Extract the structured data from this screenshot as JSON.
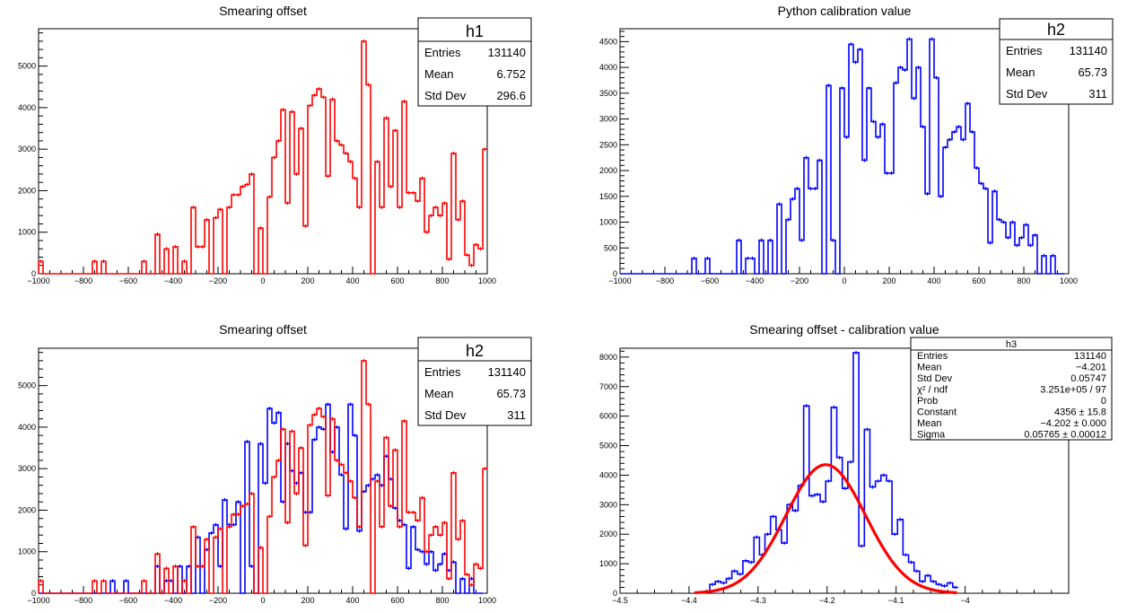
{
  "colors": {
    "red": "#ff0000",
    "blue": "#0000ff",
    "frame": "#000000",
    "background": "#ffffff"
  },
  "chart_data": [
    {
      "id": "pad1",
      "type": "histogram",
      "title": "Smearing offset",
      "xlim": [
        -1000,
        1000
      ],
      "ylim": [
        0,
        5900
      ],
      "xticks": [
        -1000,
        -800,
        -600,
        -400,
        -200,
        0,
        200,
        400,
        600,
        800,
        1000
      ],
      "yticks": [
        0,
        1000,
        2000,
        3000,
        4000,
        5000
      ],
      "ytick_labels": [
        "0",
        "1000",
        "2000",
        "3000",
        "4000",
        "5000"
      ],
      "series": [
        {
          "color": "#ff0000",
          "bins": 100,
          "xmin": -1000,
          "xmax": 1000,
          "values": [
            300,
            0,
            0,
            0,
            0,
            0,
            0,
            0,
            0,
            0,
            0,
            0,
            300,
            0,
            300,
            0,
            0,
            0,
            0,
            0,
            0,
            0,
            0,
            300,
            0,
            0,
            950,
            0,
            600,
            0,
            650,
            0,
            300,
            0,
            1600,
            650,
            650,
            1300,
            0,
            1350,
            1550,
            0,
            1600,
            1900,
            1900,
            2100,
            2150,
            2400,
            0,
            1100,
            0,
            1850,
            2800,
            3200,
            3950,
            1700,
            3900,
            2400,
            3500,
            1150,
            4050,
            4300,
            4450,
            4250,
            2350,
            4200,
            3200,
            3100,
            2900,
            2700,
            2300,
            1600,
            5600,
            4550,
            0,
            2700,
            1600,
            3750,
            2100,
            3450,
            1600,
            4150,
            1950,
            1950,
            1750,
            2300,
            1000,
            1400,
            1600,
            1400,
            1700,
            350,
            2900,
            1300,
            1750,
            450,
            200,
            700,
            600,
            3000
          ]
        }
      ],
      "stats": {
        "name": "h1",
        "rows": [
          {
            "label": "Entries",
            "value": "131140"
          },
          {
            "label": "Mean",
            "value": "6.752"
          },
          {
            "label": "Std Dev",
            "value": "296.6"
          }
        ]
      }
    },
    {
      "id": "pad2",
      "type": "histogram",
      "title": "Python calibration value",
      "xlim": [
        -1000,
        1000
      ],
      "ylim": [
        0,
        4750
      ],
      "xticks": [
        -1000,
        -800,
        -600,
        -400,
        -200,
        0,
        200,
        400,
        600,
        800,
        1000
      ],
      "yticks": [
        0,
        500,
        1000,
        1500,
        2000,
        2500,
        3000,
        3500,
        4000,
        4500
      ],
      "ytick_labels": [
        "0",
        "500",
        "1000",
        "1500",
        "2000",
        "2500",
        "3000",
        "3500",
        "4000",
        "4500"
      ],
      "series": [
        {
          "color": "#0000ff",
          "bins": 100,
          "xmin": -1000,
          "xmax": 1000,
          "values": [
            0,
            0,
            0,
            0,
            0,
            0,
            0,
            0,
            0,
            0,
            0,
            0,
            0,
            0,
            0,
            0,
            300,
            0,
            0,
            300,
            0,
            0,
            0,
            0,
            0,
            0,
            650,
            0,
            300,
            300,
            0,
            650,
            0,
            650,
            0,
            1350,
            0,
            1050,
            1450,
            1650,
            650,
            2250,
            1650,
            1650,
            2200,
            0,
            3650,
            650,
            0,
            3600,
            2650,
            4450,
            4100,
            4350,
            2200,
            3600,
            2950,
            2650,
            2900,
            1950,
            1950,
            3700,
            4000,
            3950,
            4550,
            3400,
            4000,
            2850,
            1550,
            4550,
            3800,
            1500,
            2450,
            2600,
            2750,
            2850,
            2600,
            3300,
            2750,
            2050,
            1750,
            1650,
            600,
            1600,
            1050,
            1000,
            700,
            1000,
            550,
            700,
            950,
            550,
            750,
            0,
            350,
            0,
            350,
            0,
            0
          ]
        }
      ],
      "stats": {
        "name": "h2",
        "rows": [
          {
            "label": "Entries",
            "value": "131140"
          },
          {
            "label": "Mean",
            "value": "65.73"
          },
          {
            "label": "Std Dev",
            "value": "311"
          }
        ]
      }
    },
    {
      "id": "pad3",
      "type": "histogram",
      "title": "Smearing offset",
      "xlim": [
        -1000,
        1000
      ],
      "ylim": [
        0,
        5900
      ],
      "xticks": [
        -1000,
        -800,
        -600,
        -400,
        -200,
        0,
        200,
        400,
        600,
        800,
        1000
      ],
      "yticks": [
        0,
        1000,
        2000,
        3000,
        4000,
        5000
      ],
      "ytick_labels": [
        "0",
        "1000",
        "2000",
        "3000",
        "4000",
        "5000"
      ],
      "series": [
        {
          "color": "#0000ff",
          "bins": 100,
          "xmin": -1000,
          "xmax": 1000,
          "values": [
            0,
            0,
            0,
            0,
            0,
            0,
            0,
            0,
            0,
            0,
            0,
            0,
            0,
            0,
            0,
            0,
            300,
            0,
            0,
            300,
            0,
            0,
            0,
            0,
            0,
            0,
            650,
            0,
            300,
            300,
            0,
            650,
            0,
            650,
            0,
            1350,
            0,
            1050,
            1450,
            1650,
            650,
            2250,
            1650,
            1650,
            2200,
            0,
            3650,
            650,
            0,
            3600,
            2650,
            4450,
            4100,
            4350,
            2200,
            3600,
            2950,
            2650,
            2900,
            1950,
            1950,
            3700,
            4000,
            3950,
            4550,
            3400,
            4000,
            2850,
            1550,
            4550,
            3800,
            1500,
            2450,
            2600,
            2750,
            2850,
            2600,
            3300,
            2750,
            2050,
            1750,
            1650,
            600,
            1600,
            1050,
            1000,
            700,
            1000,
            550,
            700,
            950,
            550,
            750,
            0,
            350,
            0,
            350,
            0,
            0
          ]
        },
        {
          "color": "#ff0000",
          "bins": 100,
          "xmin": -1000,
          "xmax": 1000,
          "values": [
            300,
            0,
            0,
            0,
            0,
            0,
            0,
            0,
            0,
            0,
            0,
            0,
            300,
            0,
            300,
            0,
            0,
            0,
            0,
            0,
            0,
            0,
            0,
            300,
            0,
            0,
            950,
            0,
            600,
            0,
            650,
            0,
            300,
            0,
            1600,
            650,
            650,
            1300,
            0,
            1350,
            1550,
            0,
            1600,
            1900,
            1900,
            2100,
            2150,
            2400,
            0,
            1100,
            0,
            1850,
            2800,
            3200,
            3950,
            1700,
            3900,
            2400,
            3500,
            1150,
            4050,
            4300,
            4450,
            4250,
            2350,
            4200,
            3200,
            3100,
            2900,
            2700,
            2300,
            1600,
            5600,
            4550,
            0,
            2700,
            1600,
            3750,
            2100,
            3450,
            1600,
            4150,
            1950,
            1950,
            1750,
            2300,
            1000,
            1400,
            1600,
            1400,
            1700,
            350,
            2900,
            1300,
            1750,
            450,
            200,
            700,
            600,
            3000
          ]
        }
      ],
      "stats": {
        "name": "h2",
        "rows": [
          {
            "label": "Entries",
            "value": "131140"
          },
          {
            "label": "Mean",
            "value": "65.73"
          },
          {
            "label": "Std Dev",
            "value": "311"
          }
        ]
      }
    },
    {
      "id": "pad4",
      "type": "histogram",
      "title": "Smearing offset - calibration value",
      "xlim": [
        -4.5,
        -3.85
      ],
      "ylim": [
        0,
        8300
      ],
      "xticks": [
        -4.5,
        -4.4,
        -4.3,
        -4.2,
        -4.1,
        -4.0
      ],
      "yticks": [
        0,
        1000,
        2000,
        3000,
        4000,
        5000,
        6000,
        7000,
        8000
      ],
      "ytick_labels": [
        "0",
        "1000",
        "2000",
        "3000",
        "4000",
        "5000",
        "6000",
        "7000",
        "8000"
      ],
      "series": [
        {
          "color": "#0000ff",
          "bins": 45,
          "xmin": -4.37,
          "xmax": -4.01,
          "values": [
            300,
            400,
            350,
            500,
            750,
            650,
            1100,
            1050,
            1900,
            1300,
            2000,
            2600,
            2150,
            1700,
            3000,
            2800,
            3650,
            6350,
            3300,
            3350,
            3100,
            3800,
            6300,
            4600,
            3550,
            4450,
            8150,
            1600,
            5550,
            3600,
            3800,
            4000,
            3800,
            2000,
            2500,
            1300,
            1050,
            750,
            400,
            600,
            400,
            300,
            250,
            350,
            200
          ]
        }
      ],
      "fit": {
        "color": "#ff0000",
        "constant": 4356,
        "mean": -4.202,
        "sigma": 0.05765
      },
      "stats": {
        "name": "h3",
        "rows": [
          {
            "label": "Entries",
            "value": "131140"
          },
          {
            "label": "Mean",
            "value": "−4.201"
          },
          {
            "label": "Std Dev",
            "value": "0.05747"
          },
          {
            "label": "χ² / ndf",
            "value": "3.251e+05 / 97"
          },
          {
            "label": "Prob",
            "value": "0"
          },
          {
            "label": "Constant",
            "value": "4356 ± 15.8"
          },
          {
            "label": "Mean",
            "value": "−4.202 ± 0.000"
          },
          {
            "label": "Sigma",
            "value": "0.05765 ± 0.00012"
          }
        ]
      }
    }
  ]
}
